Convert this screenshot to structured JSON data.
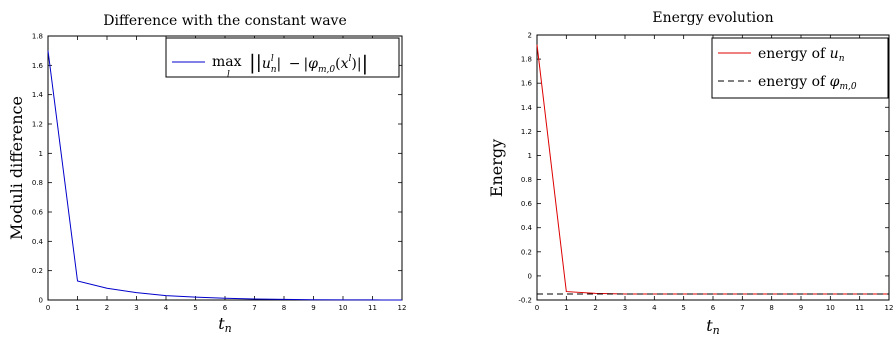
{
  "chart_data": [
    {
      "type": "line",
      "title": "Difference with the constant wave",
      "xlabel": "t_n",
      "ylabel": "Moduli difference",
      "xlim": [
        0,
        12
      ],
      "ylim": [
        0,
        1.8
      ],
      "x_ticks": [
        "0",
        "1",
        "2",
        "3",
        "4",
        "5",
        "6",
        "7",
        "8",
        "9",
        "10",
        "11",
        "12"
      ],
      "y_ticks": [
        "0",
        "0.2",
        "0.4",
        "0.6",
        "0.8",
        "1",
        "1.2",
        "1.4",
        "1.6",
        "1.8"
      ],
      "grid": false,
      "legend_position": "top-right",
      "series": [
        {
          "name": "max_l | |u_n^l| − |φ_{m,0}(x^l)| |",
          "color": "#0000cc",
          "style": "solid",
          "x": [
            0,
            1,
            2,
            3,
            4,
            5,
            6,
            7,
            8,
            9,
            10,
            11,
            12
          ],
          "y": [
            1.7,
            0.13,
            0.08,
            0.05,
            0.03,
            0.02,
            0.012,
            0.007,
            0.004,
            0.002,
            0.001,
            0.0005,
            0.0002
          ]
        }
      ]
    },
    {
      "type": "line",
      "title": "Energy evolution",
      "xlabel": "t_n",
      "ylabel": "Energy",
      "xlim": [
        0,
        12
      ],
      "ylim": [
        -0.2,
        2
      ],
      "x_ticks": [
        "0",
        "1",
        "2",
        "3",
        "4",
        "5",
        "6",
        "7",
        "8",
        "9",
        "10",
        "11",
        "12"
      ],
      "y_ticks": [
        "-0.2",
        "0",
        "0.2",
        "0.4",
        "0.6",
        "0.8",
        "1",
        "1.2",
        "1.4",
        "1.6",
        "1.8",
        "2"
      ],
      "grid": false,
      "legend_position": "top-right",
      "series": [
        {
          "name": "energy of u_n",
          "color": "#dd0000",
          "style": "solid",
          "x": [
            0,
            1,
            2,
            3,
            4,
            5,
            6,
            7,
            8,
            9,
            10,
            11,
            12
          ],
          "y": [
            1.92,
            -0.13,
            -0.145,
            -0.15,
            -0.15,
            -0.15,
            -0.15,
            -0.15,
            -0.15,
            -0.15,
            -0.15,
            -0.15,
            -0.15
          ]
        },
        {
          "name": "energy of φ_{m,0}",
          "color": "#000000",
          "style": "dashed",
          "x": [
            0,
            12
          ],
          "y": [
            -0.15,
            -0.15
          ]
        }
      ]
    }
  ]
}
